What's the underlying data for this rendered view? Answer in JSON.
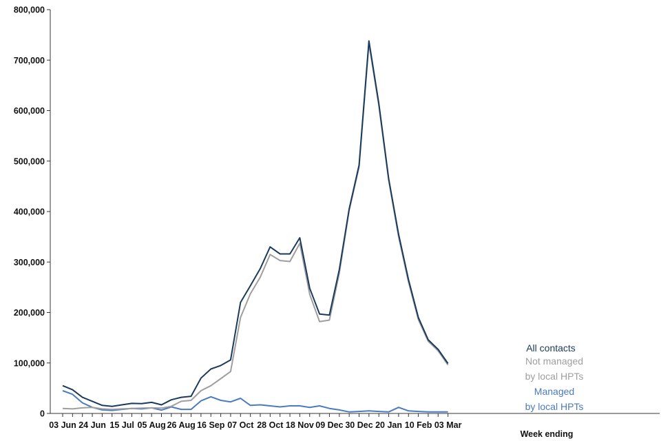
{
  "chart_data": {
    "type": "line",
    "xlabel": "Week ending",
    "ylabel": "",
    "ylim": [
      0,
      800000
    ],
    "y_ticks": [
      0,
      100000,
      200000,
      300000,
      400000,
      500000,
      600000,
      700000,
      800000
    ],
    "y_tick_labels": [
      "0",
      "100,000",
      "200,000",
      "300,000",
      "400,000",
      "500,000",
      "600,000",
      "700,000",
      "800,000"
    ],
    "x": [
      "03 Jun",
      "10 Jun",
      "17 Jun",
      "24 Jun",
      "01 Jul",
      "08 Jul",
      "15 Jul",
      "22 Jul",
      "29 Jul",
      "05 Aug",
      "12 Aug",
      "19 Aug",
      "26 Aug",
      "02 Sep",
      "09 Sep",
      "16 Sep",
      "23 Sep",
      "30 Sep",
      "07 Oct",
      "14 Oct",
      "21 Oct",
      "28 Oct",
      "04 Nov",
      "11 Nov",
      "18 Nov",
      "25 Nov",
      "02 Dec",
      "09 Dec",
      "16 Dec",
      "23 Dec",
      "30 Dec",
      "06 Jan",
      "13 Jan",
      "20 Jan",
      "27 Jan",
      "03 Feb",
      "10 Feb",
      "17 Feb",
      "24 Feb",
      "03 Mar"
    ],
    "x_tick_labels": [
      "03 Jun",
      "24 Jun",
      "15 Jul",
      "05 Aug",
      "26 Aug",
      "16 Sep",
      "07 Oct",
      "28 Oct",
      "18 Nov",
      "09 Dec",
      "30 Dec",
      "20 Jan",
      "10 Feb",
      "03 Mar"
    ],
    "grid": false,
    "legend": "inline labels at right end of lines",
    "series": [
      {
        "name": "All contacts",
        "color": "#1a3a5c",
        "values": [
          55000,
          47000,
          32000,
          24000,
          16000,
          14000,
          17000,
          20000,
          19500,
          22000,
          17000,
          27000,
          32000,
          34000,
          70000,
          88000,
          95000,
          106000,
          220000,
          253000,
          287000,
          330000,
          316000,
          316000,
          348000,
          248000,
          197000,
          195000,
          285000,
          405000,
          492000,
          738000,
          614000,
          465000,
          355000,
          265000,
          190000,
          146000,
          127000,
          99000
        ]
      },
      {
        "name": "Not managed by local HPTs",
        "color": "#9e9e9e",
        "values": [
          10000,
          9000,
          11000,
          12000,
          9000,
          8000,
          9000,
          10000,
          10500,
          11000,
          10500,
          14000,
          24000,
          26000,
          45000,
          55000,
          69000,
          83000,
          190000,
          237000,
          270000,
          315000,
          303000,
          301000,
          337000,
          236000,
          182000,
          185000,
          278000,
          402000,
          488000,
          733000,
          610000,
          462000,
          350000,
          260000,
          186000,
          143000,
          124000,
          96000
        ]
      },
      {
        "name": "Managed by local HPTs",
        "color": "#4a7abf",
        "values": [
          45000,
          38000,
          21000,
          12000,
          7000,
          6000,
          8000,
          10000,
          9000,
          11000,
          6500,
          13000,
          8000,
          8000,
          25000,
          33000,
          26000,
          23000,
          30000,
          16000,
          17000,
          15000,
          13000,
          15000,
          15000,
          12000,
          15000,
          10000,
          7000,
          3000,
          4000,
          5000,
          4000,
          3000,
          12000,
          5000,
          4000,
          3000,
          3000,
          3000
        ]
      }
    ],
    "annotations": [
      {
        "lines": [
          "All contacts"
        ],
        "color": "#1a3a5c"
      },
      {
        "lines": [
          "Not managed",
          "by local HPTs"
        ],
        "color": "#9e9e9e"
      },
      {
        "lines": [
          "Managed",
          "by local HPTs"
        ],
        "color": "#4a7abf"
      }
    ]
  }
}
